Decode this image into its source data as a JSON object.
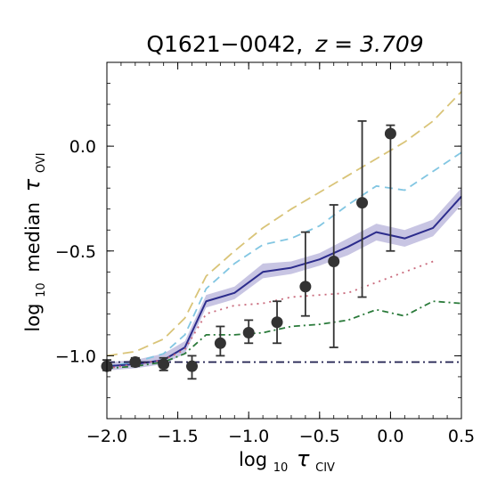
{
  "chart_data": {
    "type": "line",
    "title_prefix": "Q1621−0042,",
    "title_z": "z = 3.709",
    "xlabel_prefix": "log",
    "xlabel_sub": "10",
    "xlabel_symbol": "τ",
    "xlabel_ion": "CIV",
    "ylabel_prefix": "log",
    "ylabel_sub": "10",
    "ylabel_mid": "median",
    "ylabel_symbol": "τ",
    "ylabel_ion": "OVI",
    "xlim": [
      -2.0,
      0.5
    ],
    "ylim": [
      -1.3,
      0.4
    ],
    "xticks": [
      -2.0,
      -1.5,
      -1.0,
      -0.5,
      0.0,
      0.5
    ],
    "xtick_labels": [
      "−2.0",
      "−1.5",
      "−1.0",
      "−0.5",
      "0.0",
      "0.5"
    ],
    "yticks": [
      -1.0,
      -0.5,
      0.0
    ],
    "ytick_labels": [
      "−1.0",
      "−0.5",
      "0.0"
    ],
    "grid": false,
    "series": [
      {
        "style": "dashed-long",
        "color": "#d9c478",
        "x": [
          -2.0,
          -1.8,
          -1.6,
          -1.45,
          -1.3,
          -1.1,
          -0.9,
          -0.7,
          -0.5,
          -0.3,
          -0.1,
          0.1,
          0.3,
          0.5
        ],
        "y": [
          -1.0,
          -0.98,
          -0.92,
          -0.82,
          -0.62,
          -0.5,
          -0.39,
          -0.3,
          -0.22,
          -0.14,
          -0.06,
          0.02,
          0.12,
          0.26
        ]
      },
      {
        "style": "dashed",
        "color": "#82c6e2",
        "x": [
          -2.0,
          -1.8,
          -1.6,
          -1.45,
          -1.3,
          -1.1,
          -0.9,
          -0.7,
          -0.5,
          -0.3,
          -0.1,
          0.1,
          0.3,
          0.5
        ],
        "y": [
          -1.05,
          -1.03,
          -0.99,
          -0.9,
          -0.68,
          -0.56,
          -0.47,
          -0.44,
          -0.38,
          -0.28,
          -0.19,
          -0.21,
          -0.12,
          -0.03
        ]
      },
      {
        "style": "solid",
        "color": "#2c2c8c",
        "band": true,
        "band_color": "#9a96cc",
        "x": [
          -2.0,
          -1.8,
          -1.6,
          -1.45,
          -1.3,
          -1.1,
          -0.9,
          -0.7,
          -0.5,
          -0.3,
          -0.1,
          0.1,
          0.3,
          0.5
        ],
        "y": [
          -1.05,
          -1.04,
          -1.02,
          -0.96,
          -0.74,
          -0.7,
          -0.6,
          -0.58,
          -0.54,
          -0.48,
          -0.41,
          -0.44,
          -0.39,
          -0.24
        ],
        "y_low": [
          -1.07,
          -1.06,
          -1.04,
          -0.99,
          -0.77,
          -0.73,
          -0.63,
          -0.61,
          -0.57,
          -0.52,
          -0.45,
          -0.48,
          -0.43,
          -0.28
        ],
        "y_high": [
          -1.03,
          -1.02,
          -0.99,
          -0.93,
          -0.71,
          -0.67,
          -0.56,
          -0.55,
          -0.51,
          -0.44,
          -0.37,
          -0.4,
          -0.35,
          -0.2
        ]
      },
      {
        "style": "dotted",
        "color": "#c96a7c",
        "x": [
          -2.0,
          -1.8,
          -1.6,
          -1.45,
          -1.3,
          -1.1,
          -0.9,
          -0.7,
          -0.5,
          -0.3,
          -0.1,
          0.1,
          0.3
        ],
        "y": [
          -1.06,
          -1.04,
          -1.02,
          -0.97,
          -0.8,
          -0.76,
          -0.75,
          -0.72,
          -0.71,
          -0.7,
          -0.65,
          -0.6,
          -0.55
        ]
      },
      {
        "style": "dashdot",
        "color": "#2a7a3a",
        "x": [
          -2.0,
          -1.8,
          -1.6,
          -1.45,
          -1.3,
          -1.1,
          -0.9,
          -0.7,
          -0.5,
          -0.3,
          -0.1,
          0.1,
          0.3,
          0.5
        ],
        "y": [
          -1.06,
          -1.05,
          -1.03,
          -0.99,
          -0.9,
          -0.9,
          -0.89,
          -0.86,
          -0.85,
          -0.83,
          -0.78,
          -0.81,
          -0.74,
          -0.75
        ]
      },
      {
        "style": "dashdot-flat",
        "color": "#1e1e4e",
        "x": [
          -2.0,
          0.5
        ],
        "y": [
          -1.03,
          -1.03
        ]
      }
    ],
    "points": {
      "color": "#333333",
      "x": [
        -2.0,
        -1.8,
        -1.6,
        -1.4,
        -1.2,
        -1.0,
        -0.8,
        -0.6,
        -0.4,
        -0.2,
        0.0
      ],
      "y": [
        -1.05,
        -1.03,
        -1.04,
        -1.05,
        -0.94,
        -0.89,
        -0.84,
        -0.67,
        -0.55,
        -0.27,
        0.06
      ],
      "y_low": [
        -1.07,
        -1.05,
        -1.07,
        -1.11,
        -1.0,
        -0.94,
        -0.94,
        -0.81,
        -0.96,
        -0.72,
        -0.5
      ],
      "y_high": [
        -1.02,
        -1.01,
        -1.01,
        -1.0,
        -0.86,
        -0.83,
        -0.74,
        -0.41,
        -0.28,
        0.12,
        0.1
      ]
    }
  }
}
